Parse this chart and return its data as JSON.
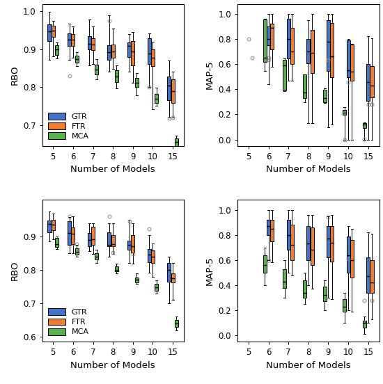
{
  "colors": {
    "GTR": "#4472C4",
    "FTR": "#ED7D31",
    "MCA": "#5AAF50"
  },
  "x_labels": [
    "5",
    "6",
    "7",
    "8",
    "9",
    "10",
    "15"
  ],
  "panels": {
    "top_left": {
      "ylabel": "RBO",
      "xlabel": "Number of Models",
      "ylim": [
        0.645,
        1.02
      ],
      "yticks": [
        0.7,
        0.8,
        0.9,
        1.0
      ],
      "draw_order": [
        "GTR",
        "FTR",
        "MCA"
      ],
      "GTR": {
        "5": {
          "whislo": 0.872,
          "q1": 0.922,
          "med": 0.948,
          "q3": 0.965,
          "whishi": 0.998,
          "fliers": []
        },
        "6": {
          "whislo": 0.872,
          "q1": 0.908,
          "med": 0.926,
          "q3": 0.942,
          "whishi": 0.968,
          "fliers": [
            0.83
          ]
        },
        "7": {
          "whislo": 0.858,
          "q1": 0.9,
          "med": 0.915,
          "q3": 0.935,
          "whishi": 0.978,
          "fliers": []
        },
        "8": {
          "whislo": 0.84,
          "q1": 0.872,
          "med": 0.893,
          "q3": 0.91,
          "whishi": 0.99,
          "fliers": [
            0.975
          ]
        },
        "9": {
          "whislo": 0.84,
          "q1": 0.88,
          "med": 0.908,
          "q3": 0.918,
          "whishi": 0.94,
          "fliers": []
        },
        "10": {
          "whislo": 0.8,
          "q1": 0.862,
          "med": 0.888,
          "q3": 0.93,
          "whishi": 0.942,
          "fliers": [
            0.8
          ]
        },
        "15": {
          "whislo": 0.72,
          "q1": 0.765,
          "med": 0.805,
          "q3": 0.828,
          "whishi": 0.87,
          "fliers": [
            0.718
          ]
        }
      },
      "FTR": {
        "5": {
          "whislo": 0.882,
          "q1": 0.932,
          "med": 0.95,
          "q3": 0.962,
          "whishi": 0.975,
          "fliers": []
        },
        "6": {
          "whislo": 0.878,
          "q1": 0.908,
          "med": 0.925,
          "q3": 0.94,
          "whishi": 0.96,
          "fliers": []
        },
        "7": {
          "whislo": 0.862,
          "q1": 0.898,
          "med": 0.912,
          "q3": 0.93,
          "whishi": 0.96,
          "fliers": []
        },
        "8": {
          "whislo": 0.848,
          "q1": 0.878,
          "med": 0.895,
          "q3": 0.912,
          "whishi": 0.955,
          "fliers": []
        },
        "9": {
          "whislo": 0.812,
          "q1": 0.858,
          "med": 0.895,
          "q3": 0.922,
          "whishi": 0.945,
          "fliers": []
        },
        "10": {
          "whislo": 0.742,
          "q1": 0.855,
          "med": 0.878,
          "q3": 0.9,
          "whishi": 0.92,
          "fliers": []
        },
        "15": {
          "whislo": 0.72,
          "q1": 0.758,
          "med": 0.79,
          "q3": 0.82,
          "whishi": 0.84,
          "fliers": [
            0.72
          ]
        }
      },
      "MCA": {
        "5": {
          "whislo": 0.875,
          "q1": 0.885,
          "med": 0.9,
          "q3": 0.91,
          "whishi": 0.918,
          "fliers": []
        },
        "6": {
          "whislo": 0.856,
          "q1": 0.864,
          "med": 0.874,
          "q3": 0.884,
          "whishi": 0.892,
          "fliers": []
        },
        "7": {
          "whislo": 0.82,
          "q1": 0.834,
          "med": 0.846,
          "q3": 0.86,
          "whishi": 0.874,
          "fliers": []
        },
        "8": {
          "whislo": 0.796,
          "q1": 0.814,
          "med": 0.828,
          "q3": 0.844,
          "whishi": 0.858,
          "fliers": []
        },
        "9": {
          "whislo": 0.778,
          "q1": 0.8,
          "med": 0.812,
          "q3": 0.825,
          "whishi": 0.838,
          "fliers": []
        },
        "10": {
          "whislo": 0.75,
          "q1": 0.758,
          "med": 0.77,
          "q3": 0.782,
          "whishi": 0.798,
          "fliers": []
        },
        "15": {
          "whislo": 0.638,
          "q1": 0.644,
          "med": 0.655,
          "q3": 0.664,
          "whishi": 0.672,
          "fliers": []
        }
      }
    },
    "top_right": {
      "ylabel": "MAP-5",
      "xlabel": "Number of Models",
      "ylim": [
        -0.05,
        1.08
      ],
      "yticks": [
        0.0,
        0.2,
        0.4,
        0.6,
        0.8,
        1.0
      ],
      "draw_order": [
        "MCA",
        "GTR",
        "FTR"
      ],
      "GTR": {
        "5": {
          "whislo": null,
          "q1": null,
          "med": null,
          "q3": null,
          "whishi": null,
          "fliers": [
            0.8
          ]
        },
        "6": {
          "whislo": 0.44,
          "q1": 0.748,
          "med": 0.8,
          "q3": 0.9,
          "whishi": 1.0,
          "fliers": [
            0.635,
            0.65
          ]
        },
        "7": {
          "whislo": 0.47,
          "q1": 0.648,
          "med": 0.8,
          "q3": 0.96,
          "whishi": 1.0,
          "fliers": []
        },
        "8": {
          "whislo": 0.13,
          "q1": 0.605,
          "med": 0.7,
          "q3": 0.8,
          "whishi": 0.95,
          "fliers": []
        },
        "9": {
          "whislo": 0.1,
          "q1": 0.548,
          "med": 0.78,
          "q3": 0.948,
          "whishi": 1.0,
          "fliers": [
            0.635
          ]
        },
        "10": {
          "whislo": 0.0,
          "q1": 0.498,
          "med": 0.55,
          "q3": 0.79,
          "whishi": 0.8,
          "fliers": [
            0.46
          ]
        },
        "15": {
          "whislo": 0.0,
          "q1": 0.31,
          "med": 0.46,
          "q3": 0.6,
          "whishi": 0.82,
          "fliers": [
            0.278
          ]
        }
      },
      "FTR": {
        "5": {
          "whislo": null,
          "q1": null,
          "med": null,
          "q3": null,
          "whishi": null,
          "fliers": [
            0.65
          ]
        },
        "6": {
          "whislo": 0.58,
          "q1": 0.72,
          "med": 0.89,
          "q3": 0.92,
          "whishi": 1.0,
          "fliers": []
        },
        "7": {
          "whislo": 0.47,
          "q1": 0.6,
          "med": 0.7,
          "q3": 0.89,
          "whishi": 1.0,
          "fliers": []
        },
        "8": {
          "whislo": 0.13,
          "q1": 0.53,
          "med": 0.69,
          "q3": 0.87,
          "whishi": 1.0,
          "fliers": []
        },
        "9": {
          "whislo": 0.12,
          "q1": 0.498,
          "med": 0.66,
          "q3": 0.93,
          "whishi": 1.0,
          "fliers": []
        },
        "10": {
          "whislo": 0.0,
          "q1": 0.468,
          "med": 0.538,
          "q3": 0.758,
          "whishi": 0.76,
          "fliers": []
        },
        "15": {
          "whislo": 0.0,
          "q1": 0.335,
          "med": 0.43,
          "q3": 0.582,
          "whishi": 0.808,
          "fliers": [
            0.28
          ]
        }
      },
      "MCA": {
        "5": {
          "whislo": null,
          "q1": null,
          "med": null,
          "q3": null,
          "whishi": null,
          "fliers": []
        },
        "6": {
          "whislo": 0.548,
          "q1": 0.618,
          "med": 0.652,
          "q3": 0.958,
          "whishi": 0.96,
          "fliers": []
        },
        "7": {
          "whislo": 0.388,
          "q1": 0.392,
          "med": 0.59,
          "q3": 0.632,
          "whishi": 0.648,
          "fliers": []
        },
        "8": {
          "whislo": 0.298,
          "q1": 0.332,
          "med": 0.372,
          "q3": 0.518,
          "whishi": 0.52,
          "fliers": []
        },
        "9": {
          "whislo": 0.292,
          "q1": 0.298,
          "med": 0.328,
          "q3": 0.398,
          "whishi": 0.408,
          "fliers": []
        },
        "10": {
          "whislo": 0.0,
          "q1": 0.198,
          "med": 0.212,
          "q3": 0.238,
          "whishi": 0.258,
          "fliers": [
            0.0
          ]
        },
        "15": {
          "whislo": 0.0,
          "q1": 0.092,
          "med": 0.118,
          "q3": 0.128,
          "whishi": 0.138,
          "fliers": [
            0.002
          ]
        }
      }
    },
    "bottom_left": {
      "ylabel": "RBO",
      "xlabel": "Number of Models",
      "ylim": [
        0.585,
        1.01
      ],
      "yticks": [
        0.6,
        0.7,
        0.8,
        0.9
      ],
      "draw_order": [
        "GTR",
        "FTR",
        "MCA"
      ],
      "GTR": {
        "5": {
          "whislo": 0.886,
          "q1": 0.912,
          "med": 0.938,
          "q3": 0.948,
          "whishi": 0.975,
          "fliers": []
        },
        "6": {
          "whislo": 0.85,
          "q1": 0.875,
          "med": 0.91,
          "q3": 0.945,
          "whishi": 0.958,
          "fliers": [
            0.96
          ]
        },
        "7": {
          "whislo": 0.856,
          "q1": 0.87,
          "med": 0.89,
          "q3": 0.91,
          "whishi": 0.94,
          "fliers": []
        },
        "8": {
          "whislo": 0.84,
          "q1": 0.87,
          "med": 0.876,
          "q3": 0.912,
          "whishi": 0.94,
          "fliers": [
            0.96
          ]
        },
        "9": {
          "whislo": 0.82,
          "q1": 0.86,
          "med": 0.875,
          "q3": 0.888,
          "whishi": 0.95,
          "fliers": [
            0.945
          ]
        },
        "10": {
          "whislo": 0.792,
          "q1": 0.822,
          "med": 0.845,
          "q3": 0.862,
          "whishi": 0.905,
          "fliers": [
            0.922
          ]
        },
        "15": {
          "whislo": 0.7,
          "q1": 0.765,
          "med": 0.8,
          "q3": 0.82,
          "whishi": 0.84,
          "fliers": []
        }
      },
      "FTR": {
        "5": {
          "whislo": 0.892,
          "q1": 0.918,
          "med": 0.936,
          "q3": 0.95,
          "whishi": 0.968,
          "fliers": []
        },
        "6": {
          "whislo": 0.85,
          "q1": 0.878,
          "med": 0.908,
          "q3": 0.928,
          "whishi": 0.96,
          "fliers": [
            0.88
          ]
        },
        "7": {
          "whislo": 0.848,
          "q1": 0.875,
          "med": 0.892,
          "q3": 0.93,
          "whishi": 0.94,
          "fliers": []
        },
        "8": {
          "whislo": 0.848,
          "q1": 0.87,
          "med": 0.878,
          "q3": 0.905,
          "whishi": 0.94,
          "fliers": [
            0.852
          ]
        },
        "9": {
          "whislo": 0.818,
          "q1": 0.852,
          "med": 0.87,
          "q3": 0.905,
          "whishi": 0.94,
          "fliers": [
            0.848
          ]
        },
        "10": {
          "whislo": 0.78,
          "q1": 0.82,
          "med": 0.84,
          "q3": 0.858,
          "whishi": 0.88,
          "fliers": []
        },
        "15": {
          "whislo": 0.71,
          "q1": 0.762,
          "med": 0.775,
          "q3": 0.79,
          "whishi": 0.82,
          "fliers": []
        }
      },
      "MCA": {
        "5": {
          "whislo": 0.863,
          "q1": 0.868,
          "med": 0.878,
          "q3": 0.895,
          "whishi": 0.9,
          "fliers": []
        },
        "6": {
          "whislo": 0.84,
          "q1": 0.845,
          "med": 0.855,
          "q3": 0.865,
          "whishi": 0.875,
          "fliers": [
            0.878
          ]
        },
        "7": {
          "whislo": 0.82,
          "q1": 0.832,
          "med": 0.84,
          "q3": 0.85,
          "whishi": 0.86,
          "fliers": []
        },
        "8": {
          "whislo": 0.79,
          "q1": 0.795,
          "med": 0.8,
          "q3": 0.81,
          "whishi": 0.818,
          "fliers": []
        },
        "9": {
          "whislo": 0.758,
          "q1": 0.762,
          "med": 0.77,
          "q3": 0.778,
          "whishi": 0.79,
          "fliers": []
        },
        "10": {
          "whislo": 0.73,
          "q1": 0.738,
          "med": 0.748,
          "q3": 0.758,
          "whishi": 0.768,
          "fliers": []
        },
        "15": {
          "whislo": 0.618,
          "q1": 0.63,
          "med": 0.64,
          "q3": 0.65,
          "whishi": 0.66,
          "fliers": []
        }
      }
    },
    "bottom_right": {
      "ylabel": "MAP-5",
      "xlabel": "Number of Models",
      "ylim": [
        -0.05,
        1.08
      ],
      "yticks": [
        0.0,
        0.2,
        0.4,
        0.6,
        0.8,
        1.0
      ],
      "draw_order": [
        "MCA",
        "GTR",
        "FTR"
      ],
      "GTR": {
        "5": {
          "whislo": null,
          "q1": null,
          "med": null,
          "q3": null,
          "whishi": null,
          "fliers": []
        },
        "6": {
          "whislo": 0.6,
          "q1": 0.8,
          "med": 0.87,
          "q3": 0.92,
          "whishi": 1.0,
          "fliers": [
            0.6
          ]
        },
        "7": {
          "whislo": 0.5,
          "q1": 0.68,
          "med": 0.8,
          "q3": 0.92,
          "whishi": 1.0,
          "fliers": []
        },
        "8": {
          "whislo": 0.4,
          "q1": 0.6,
          "med": 0.73,
          "q3": 0.87,
          "whishi": 0.96,
          "fliers": []
        },
        "9": {
          "whislo": 0.3,
          "q1": 0.62,
          "med": 0.77,
          "q3": 0.87,
          "whishi": 0.95,
          "fliers": [
            0.94
          ]
        },
        "10": {
          "whislo": 0.2,
          "q1": 0.5,
          "med": 0.64,
          "q3": 0.79,
          "whishi": 0.87,
          "fliers": [
            0.61
          ]
        },
        "15": {
          "whislo": 0.1,
          "q1": 0.34,
          "med": 0.47,
          "q3": 0.62,
          "whishi": 0.82,
          "fliers": []
        }
      },
      "FTR": {
        "5": {
          "whislo": null,
          "q1": null,
          "med": null,
          "q3": null,
          "whishi": null,
          "fliers": []
        },
        "6": {
          "whislo": 0.58,
          "q1": 0.75,
          "med": 0.85,
          "q3": 0.92,
          "whishi": 1.0,
          "fliers": []
        },
        "7": {
          "whislo": 0.48,
          "q1": 0.6,
          "med": 0.72,
          "q3": 0.88,
          "whishi": 1.0,
          "fliers": []
        },
        "8": {
          "whislo": 0.37,
          "q1": 0.56,
          "med": 0.68,
          "q3": 0.86,
          "whishi": 0.96,
          "fliers": []
        },
        "9": {
          "whislo": 0.29,
          "q1": 0.59,
          "med": 0.74,
          "q3": 0.87,
          "whishi": 0.96,
          "fliers": []
        },
        "10": {
          "whislo": 0.19,
          "q1": 0.46,
          "med": 0.6,
          "q3": 0.76,
          "whishi": 0.85,
          "fliers": []
        },
        "15": {
          "whislo": 0.13,
          "q1": 0.34,
          "med": 0.42,
          "q3": 0.6,
          "whishi": 0.81,
          "fliers": [
            0.28
          ]
        }
      },
      "MCA": {
        "5": {
          "whislo": null,
          "q1": null,
          "med": null,
          "q3": null,
          "whishi": null,
          "fliers": []
        },
        "6": {
          "whislo": 0.4,
          "q1": 0.5,
          "med": 0.56,
          "q3": 0.64,
          "whishi": 0.7,
          "fliers": []
        },
        "7": {
          "whislo": 0.3,
          "q1": 0.38,
          "med": 0.43,
          "q3": 0.53,
          "whishi": 0.6,
          "fliers": []
        },
        "8": {
          "whislo": 0.25,
          "q1": 0.3,
          "med": 0.34,
          "q3": 0.44,
          "whishi": 0.5,
          "fliers": []
        },
        "9": {
          "whislo": 0.2,
          "q1": 0.27,
          "med": 0.32,
          "q3": 0.39,
          "whishi": 0.44,
          "fliers": []
        },
        "10": {
          "whislo": 0.1,
          "q1": 0.19,
          "med": 0.23,
          "q3": 0.29,
          "whishi": 0.34,
          "fliers": []
        },
        "15": {
          "whislo": 0.01,
          "q1": 0.06,
          "med": 0.1,
          "q3": 0.12,
          "whishi": 0.15,
          "fliers": [
            0.28
          ]
        }
      }
    }
  }
}
